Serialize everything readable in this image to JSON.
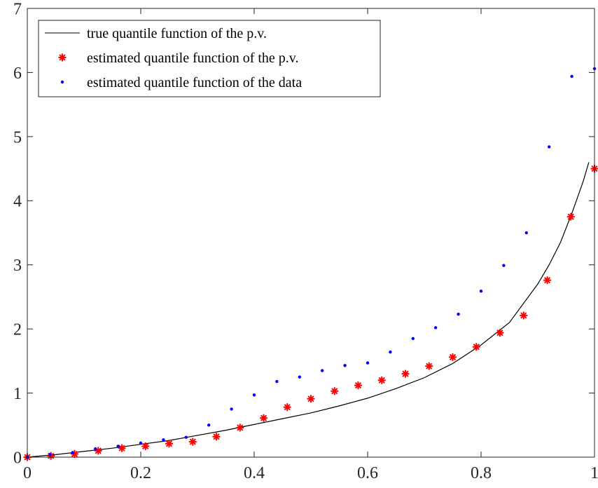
{
  "chart_data": {
    "type": "line",
    "xlim": [
      0,
      1
    ],
    "ylim": [
      0,
      7
    ],
    "x_ticks": [
      "0",
      "0.2",
      "0.4",
      "0.6",
      "0.8",
      "1"
    ],
    "y_ticks": [
      "0",
      "1",
      "2",
      "3",
      "4",
      "5",
      "6",
      "7"
    ],
    "grid": false,
    "legend_position": "top-left",
    "colors": {
      "line": "#000000",
      "stars": "#ff0000",
      "dots": "#0000ff"
    },
    "series": [
      {
        "name": "true quantile function of the p.v.",
        "style": "line",
        "x": [
          0,
          0.05,
          0.1,
          0.15,
          0.2,
          0.25,
          0.3,
          0.35,
          0.4,
          0.45,
          0.5,
          0.55,
          0.6,
          0.65,
          0.7,
          0.75,
          0.8,
          0.85,
          0.9,
          0.92,
          0.94,
          0.96,
          0.98,
          0.99
        ],
        "y": [
          0,
          0.04,
          0.09,
          0.14,
          0.2,
          0.26,
          0.34,
          0.42,
          0.51,
          0.6,
          0.69,
          0.8,
          0.92,
          1.07,
          1.24,
          1.46,
          1.75,
          2.1,
          2.7,
          3.0,
          3.35,
          3.8,
          4.3,
          4.6
        ]
      },
      {
        "name": "estimated quantile function of the p.v.",
        "style": "star",
        "x": [
          0,
          0.0417,
          0.0833,
          0.125,
          0.1667,
          0.2083,
          0.25,
          0.2917,
          0.3333,
          0.375,
          0.4167,
          0.4583,
          0.5,
          0.5417,
          0.5833,
          0.625,
          0.6667,
          0.7083,
          0.75,
          0.7917,
          0.8333,
          0.875,
          0.9167,
          0.9583,
          1.0
        ],
        "y": [
          0,
          0.02,
          0.05,
          0.1,
          0.14,
          0.17,
          0.21,
          0.24,
          0.32,
          0.46,
          0.61,
          0.78,
          0.91,
          1.03,
          1.12,
          1.2,
          1.3,
          1.42,
          1.56,
          1.72,
          1.94,
          2.21,
          2.76,
          3.75,
          4.5
        ]
      },
      {
        "name": "estimated quantile function of the data",
        "style": "dot",
        "x": [
          0,
          0.04,
          0.08,
          0.12,
          0.16,
          0.2,
          0.24,
          0.28,
          0.32,
          0.36,
          0.4,
          0.44,
          0.48,
          0.52,
          0.56,
          0.6,
          0.64,
          0.68,
          0.72,
          0.76,
          0.8,
          0.84,
          0.88,
          0.92,
          0.96,
          1.0
        ],
        "y": [
          0,
          0.04,
          0.07,
          0.13,
          0.17,
          0.22,
          0.27,
          0.31,
          0.5,
          0.75,
          0.97,
          1.18,
          1.25,
          1.35,
          1.43,
          1.47,
          1.64,
          1.85,
          2.02,
          2.23,
          2.59,
          2.99,
          3.5,
          4.84,
          5.94,
          6.06
        ]
      }
    ]
  }
}
